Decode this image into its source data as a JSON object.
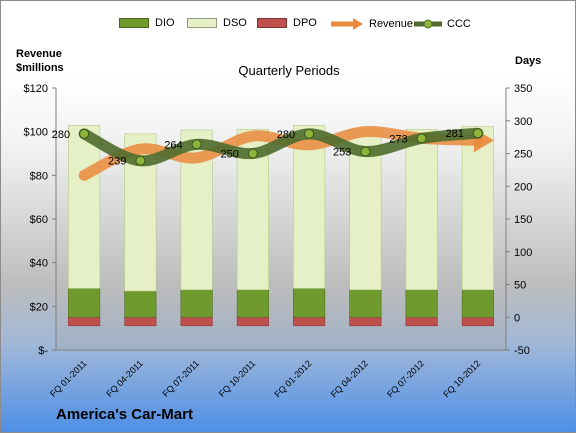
{
  "chart_data": {
    "type": "bar",
    "title": "Quarterly Periods",
    "left_axis_title": [
      "Revenue",
      "$millions"
    ],
    "right_axis_title": "Days",
    "left_ylim": [
      0,
      120
    ],
    "left_ticks": [
      "$-",
      "$20",
      "$40",
      "$60",
      "$80",
      "$100",
      "$120"
    ],
    "right_ylim": [
      -50,
      350
    ],
    "right_ticks": [
      "-50",
      "0",
      "50",
      "100",
      "150",
      "200",
      "250",
      "300",
      "350"
    ],
    "categories": [
      "FQ 01-2011",
      "FQ 04-2011",
      "FQ 07-2011",
      "FQ 10-2011",
      "FQ 01-2012",
      "FQ 04-2012",
      "FQ 07-2012",
      "FQ 10-2012"
    ],
    "legend_position": "top",
    "series": [
      {
        "name": "DIO",
        "type": "stacked-bar",
        "axis": "right",
        "color": "#6f9a2e",
        "values": [
          44,
          40,
          42,
          42,
          44,
          42,
          42,
          42
        ]
      },
      {
        "name": "DSO",
        "type": "stacked-bar",
        "axis": "right",
        "color": "#e6f0c6",
        "values": [
          249,
          240,
          244,
          245,
          249,
          244,
          245,
          249
        ]
      },
      {
        "name": "DPO",
        "type": "stacked-bar",
        "axis": "right",
        "color": "#c0504d",
        "values": [
          -13,
          -13,
          -13,
          -13,
          -13,
          -13,
          -13,
          -13
        ]
      },
      {
        "name": "Revenue",
        "type": "line",
        "axis": "left",
        "color": "#e98a3c",
        "values": [
          80,
          92,
          88,
          98,
          94,
          100,
          97,
          96
        ]
      },
      {
        "name": "CCC",
        "type": "line",
        "axis": "right",
        "color": "#4e6b2c",
        "values": [
          280,
          239,
          264,
          250,
          280,
          253,
          273,
          281
        ],
        "labels": [
          "280",
          "239",
          "264",
          "250",
          "280",
          "253",
          "273",
          "281"
        ]
      }
    ]
  },
  "company_name": "America's Car-Mart"
}
